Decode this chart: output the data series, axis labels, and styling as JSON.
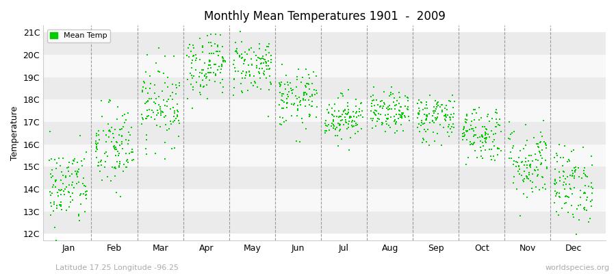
{
  "title": "Monthly Mean Temperatures 1901  -  2009",
  "ylabel": "Temperature",
  "subtitle_left": "Latitude 17.25 Longitude -96.25",
  "subtitle_right": "worldspecies.org",
  "legend_label": "Mean Temp",
  "marker_color": "#00CC00",
  "background_color": "#ffffff",
  "band_colors": [
    "#ebebeb",
    "#f8f8f8"
  ],
  "ytick_labels": [
    "12C",
    "13C",
    "14C",
    "15C",
    "16C",
    "17C",
    "18C",
    "19C",
    "20C",
    "21C"
  ],
  "ytick_values": [
    12,
    13,
    14,
    15,
    16,
    17,
    18,
    19,
    20,
    21
  ],
  "ylim": [
    11.7,
    21.3
  ],
  "months": [
    "Jan",
    "Feb",
    "Mar",
    "Apr",
    "May",
    "Jun",
    "Jul",
    "Aug",
    "Sep",
    "Oct",
    "Nov",
    "Dec"
  ],
  "mean_temps": [
    14.1,
    15.8,
    17.8,
    19.6,
    19.5,
    18.0,
    17.2,
    17.4,
    17.2,
    16.5,
    15.2,
    14.2
  ],
  "std_temps": [
    0.9,
    1.0,
    0.9,
    0.75,
    0.65,
    0.65,
    0.5,
    0.45,
    0.55,
    0.65,
    0.85,
    0.85
  ],
  "n_years": 109,
  "seed": 42
}
